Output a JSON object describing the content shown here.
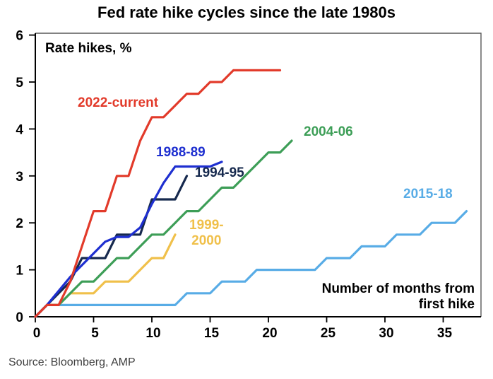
{
  "chart_data": {
    "type": "line",
    "title": "Fed rate hike cycles since the late 1980s",
    "inner_label": "Rate hikes, %",
    "xlabel_lines": [
      "Number of months from",
      "first hike"
    ],
    "source": "Source: Bloomberg, AMP",
    "xlabel": "Number of months from first hike",
    "ylabel": "Rate hikes, %",
    "xlim": [
      0,
      38.3
    ],
    "ylim": [
      0,
      6
    ],
    "xticks": [
      0,
      5,
      10,
      15,
      20,
      25,
      30,
      35
    ],
    "yticks": [
      0,
      1,
      2,
      3,
      4,
      5,
      6
    ],
    "grid": false,
    "legend_position": "inline-colored-labels",
    "axis_color": "#000000",
    "frame_color": "#595959",
    "series": [
      {
        "name": "2015-18",
        "color": "#58ace6",
        "label_lines": [
          "2015-18"
        ],
        "start_month": 0,
        "values": [
          0,
          0.25,
          0.25,
          0.25,
          0.25,
          0.25,
          0.25,
          0.25,
          0.25,
          0.25,
          0.25,
          0.25,
          0.25,
          0.5,
          0.5,
          0.5,
          0.75,
          0.75,
          0.75,
          1,
          1,
          1,
          1,
          1,
          1,
          1.25,
          1.25,
          1.25,
          1.5,
          1.5,
          1.5,
          1.75,
          1.75,
          1.75,
          2,
          2,
          2,
          2.25
        ]
      },
      {
        "name": "1999-2000",
        "color": "#f0c04a",
        "label_lines": [
          "1999-",
          "2000"
        ],
        "start_month": 0,
        "values": [
          0,
          0.25,
          0.25,
          0.5,
          0.5,
          0.5,
          0.75,
          0.75,
          0.75,
          1,
          1.25,
          1.25,
          1.75
        ]
      },
      {
        "name": "2004-06",
        "color": "#3d9e57",
        "label_lines": [
          "2004-06"
        ],
        "start_month": 0,
        "values": [
          0,
          0.25,
          0.25,
          0.5,
          0.75,
          0.75,
          1,
          1.25,
          1.25,
          1.5,
          1.75,
          1.75,
          2,
          2.25,
          2.25,
          2.5,
          2.75,
          2.75,
          3,
          3.25,
          3.5,
          3.5,
          3.75
        ]
      },
      {
        "name": "1994-95",
        "color": "#16294e",
        "label_lines": [
          "1994-95"
        ],
        "start_month": 0,
        "values": [
          0,
          0.25,
          0.5,
          0.75,
          1.25,
          1.25,
          1.25,
          1.75,
          1.75,
          1.75,
          2.5,
          2.5,
          2.5,
          3
        ]
      },
      {
        "name": "1988-89",
        "color": "#1e2fd0",
        "label_lines": [
          "1988-89"
        ],
        "start_month": 0,
        "values": [
          0,
          0.25,
          0.55,
          0.85,
          1.1,
          1.35,
          1.6,
          1.7,
          1.7,
          1.9,
          2.4,
          2.85,
          3.2,
          3.2,
          3.2,
          3.2,
          3.3
        ]
      },
      {
        "name": "2022-current",
        "color": "#e23a2a",
        "label_lines": [
          "2022-current"
        ],
        "start_month": 0,
        "values": [
          0,
          0.25,
          0.25,
          0.75,
          1.5,
          2.25,
          2.25,
          3,
          3,
          3.75,
          4.25,
          4.25,
          4.5,
          4.75,
          4.75,
          5,
          5,
          5.25,
          5.25,
          5.25,
          5.25,
          5.25
        ]
      }
    ]
  }
}
